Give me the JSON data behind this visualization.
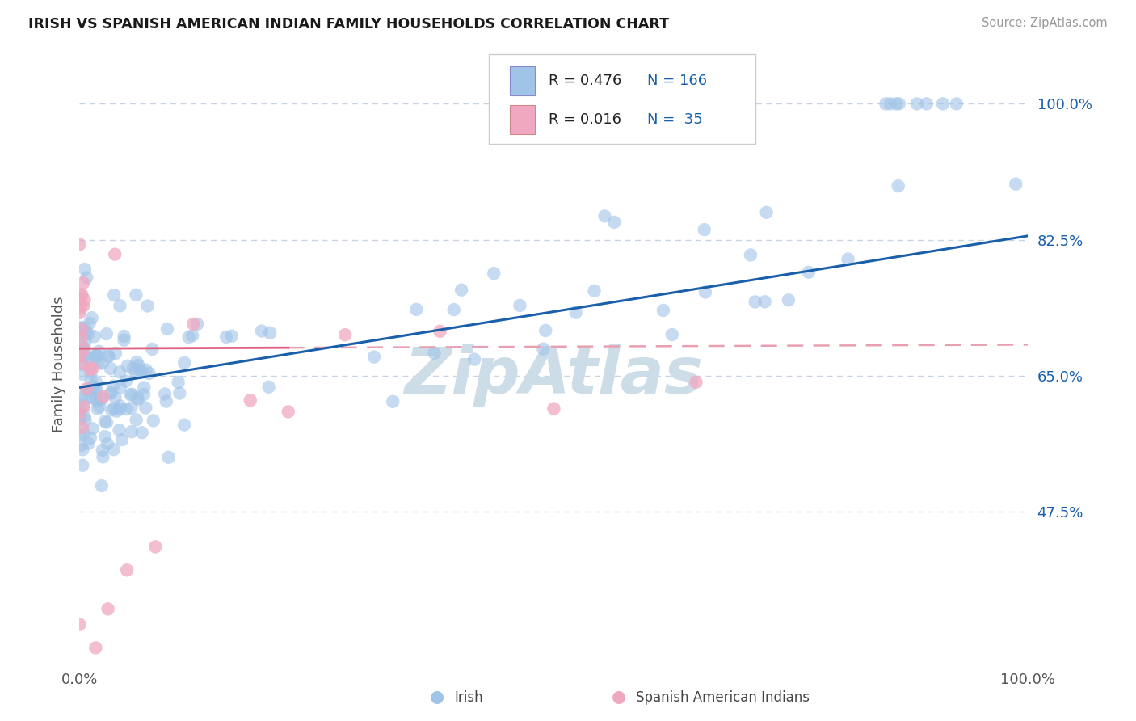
{
  "title": "IRISH VS SPANISH AMERICAN INDIAN FAMILY HOUSEHOLDS CORRELATION CHART",
  "source": "Source: ZipAtlas.com",
  "ylabel": "Family Households",
  "irish_color": "#a0c4e8",
  "spanish_color": "#f0a8c0",
  "irish_line_color": "#1a5faa",
  "spanish_line_color": "#e06080",
  "spanish_dash_color": "#e8a0b0",
  "watermark": "ZipAtlas",
  "watermark_color": "#ccdde8",
  "background_color": "#ffffff",
  "grid_color": "#c8d4e4",
  "legend_irish_r": "0.476",
  "legend_irish_n": "166",
  "legend_spanish_r": "0.016",
  "legend_spanish_n": " 35",
  "ytick_labels": [
    "47.5%",
    "65.0%",
    "82.5%",
    "100.0%"
  ],
  "ytick_values": [
    0.475,
    0.65,
    0.825,
    1.0
  ],
  "xtick_labels": [
    "0.0%",
    "100.0%"
  ],
  "xtick_values": [
    0.0,
    1.0
  ],
  "xmin": 0.0,
  "xmax": 1.0,
  "ymin": 0.28,
  "ymax": 1.05
}
